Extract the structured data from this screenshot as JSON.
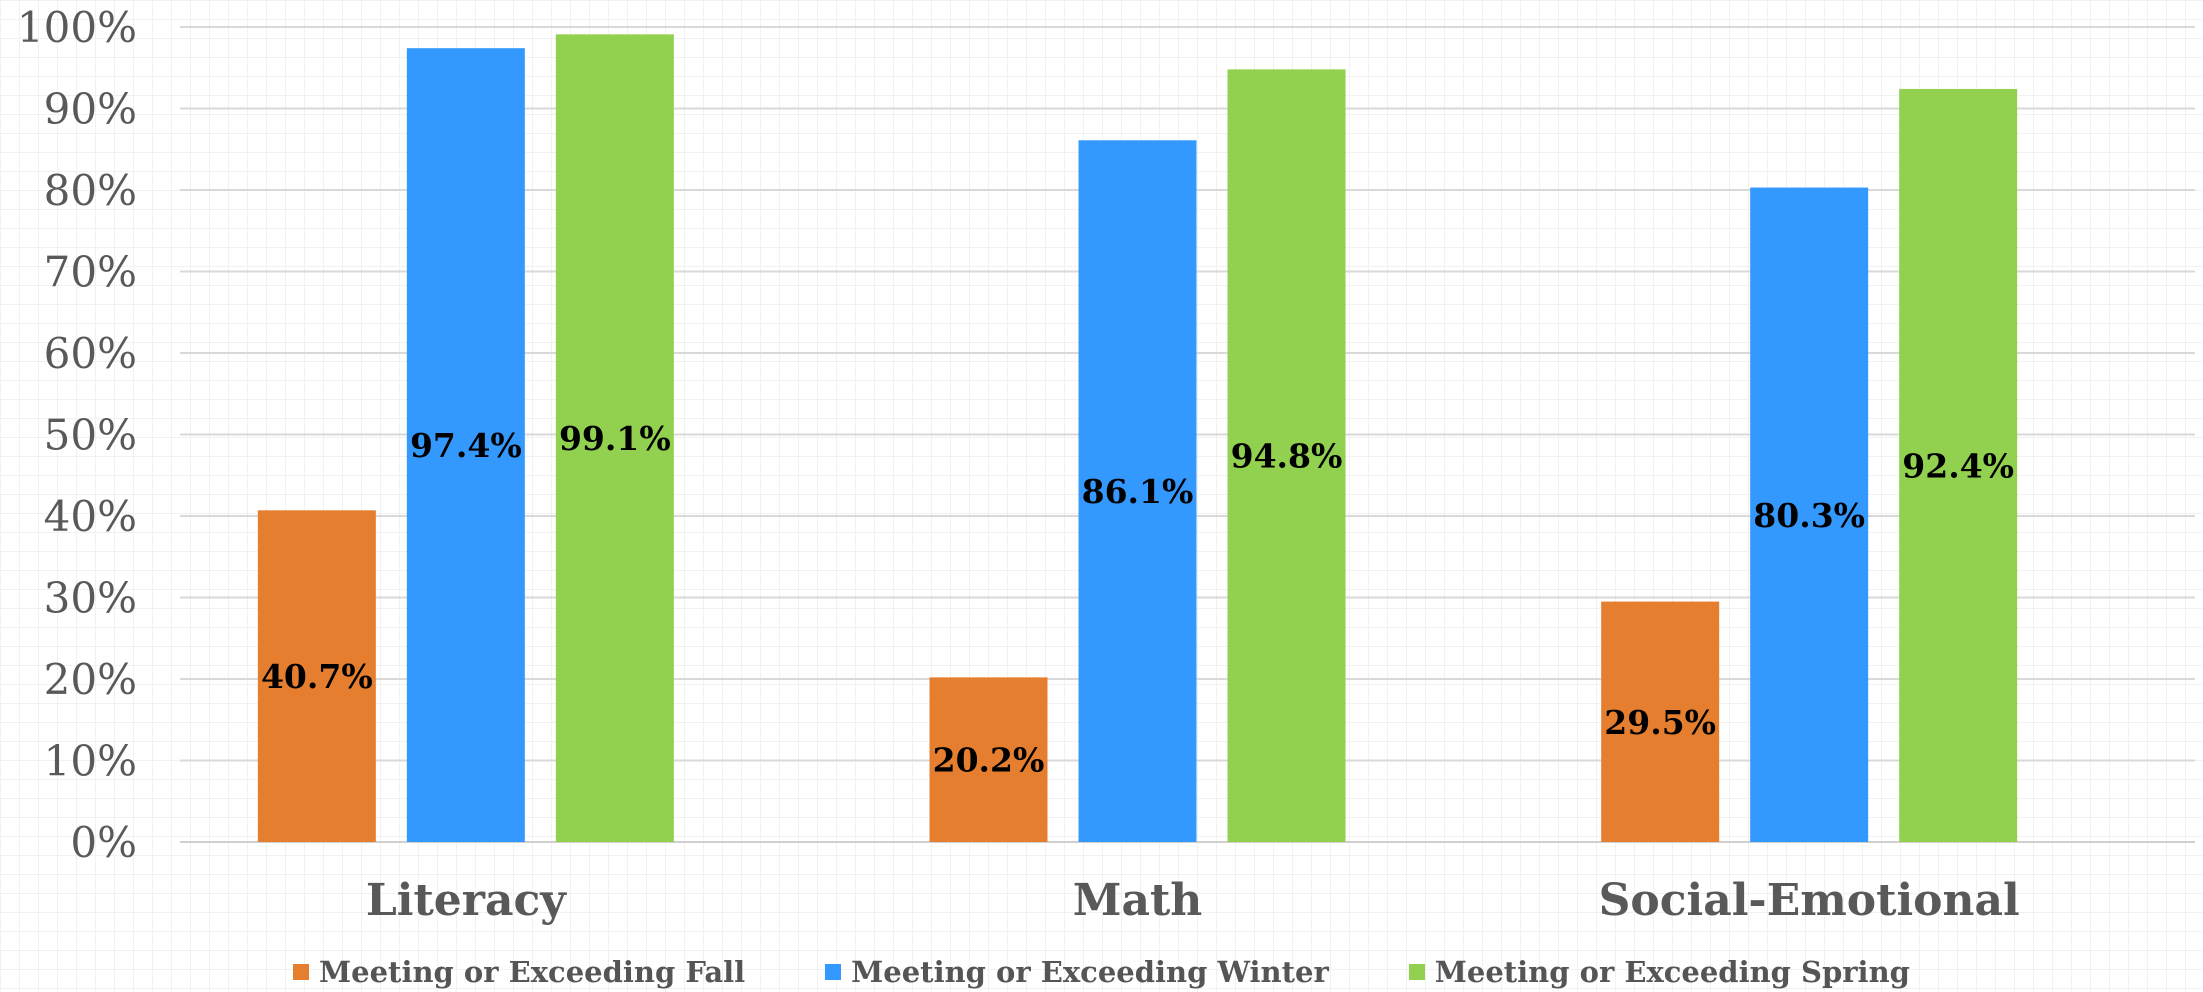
{
  "chart_data": {
    "type": "bar",
    "categories": [
      "Literacy",
      "Math",
      "Social-Emotional"
    ],
    "series": [
      {
        "name": "Meeting or Exceeding Fall",
        "values": [
          40.7,
          20.2,
          29.5
        ],
        "color": "#E67E30",
        "labels": [
          "40.7%",
          "20.2%",
          "29.5%"
        ]
      },
      {
        "name": "Meeting or Exceeding Winter",
        "values": [
          97.4,
          86.1,
          80.3
        ],
        "color": "#3399FF",
        "labels": [
          "97.4%",
          "86.1%",
          "80.3%"
        ]
      },
      {
        "name": "Meeting or Exceeding Spring",
        "values": [
          99.1,
          94.8,
          92.4
        ],
        "color": "#92D050",
        "labels": [
          "99.1%",
          "94.8%",
          "92.4%"
        ]
      }
    ],
    "ylim": [
      0,
      100
    ],
    "yticks": [
      "0%",
      "10%",
      "20%",
      "30%",
      "40%",
      "50%",
      "60%",
      "70%",
      "80%",
      "90%",
      "100%"
    ],
    "grid": true,
    "legend_position": "bottom"
  }
}
